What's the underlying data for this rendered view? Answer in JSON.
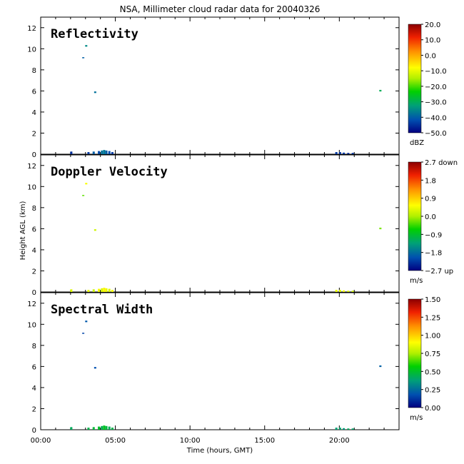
{
  "figure": {
    "title": "NSA, Millimeter cloud radar data for 20040326",
    "xlabel": "Time (hours, GMT)",
    "ylabel": "Height AGL (km)"
  },
  "chart_data": [
    {
      "type": "heatmap",
      "title": "Reflectivity",
      "xlabel": "Time (hours, GMT)",
      "ylabel": "Height AGL (km)",
      "xlim": [
        0,
        24
      ],
      "ylim": [
        0,
        13
      ],
      "xticks": [
        0,
        5,
        10,
        15,
        20
      ],
      "xtick_labels": [
        "00:00",
        "05:00",
        "10:00",
        "15:00",
        "20:00"
      ],
      "yticks": [
        0,
        2,
        4,
        6,
        8,
        10,
        12
      ],
      "colorbar": {
        "unit": "dBZ",
        "range": [
          -50,
          20
        ],
        "tick_values": [
          20,
          10,
          0,
          -10,
          -20,
          -30,
          -40,
          -50
        ],
        "tick_labels": [
          "20.0",
          "10.0",
          "0.0",
          "−10.0",
          "−20.0",
          "−30.0",
          "−40.0",
          "−50.0"
        ]
      },
      "echoes": [
        {
          "t": 2.05,
          "h0": 0.0,
          "h1": 0.25,
          "value": -45
        },
        {
          "t": 3.2,
          "h0": 0.0,
          "h1": 0.2,
          "value": -44
        },
        {
          "t": 3.55,
          "h0": 0.0,
          "h1": 0.25,
          "value": -40
        },
        {
          "t": 3.9,
          "h0": 0.0,
          "h1": 0.3,
          "value": -42
        },
        {
          "t": 4.1,
          "h0": 0.0,
          "h1": 0.35,
          "value": -38
        },
        {
          "t": 4.25,
          "h0": 0.0,
          "h1": 0.4,
          "value": -37
        },
        {
          "t": 4.4,
          "h0": 0.0,
          "h1": 0.35,
          "value": -40
        },
        {
          "t": 4.6,
          "h0": 0.0,
          "h1": 0.3,
          "value": -42
        },
        {
          "t": 4.8,
          "h0": 0.0,
          "h1": 0.2,
          "value": -44
        },
        {
          "t": 2.85,
          "h0": 9.1,
          "h1": 9.2,
          "value": -40
        },
        {
          "t": 3.05,
          "h0": 10.2,
          "h1": 10.35,
          "value": -35
        },
        {
          "t": 3.65,
          "h0": 5.8,
          "h1": 5.95,
          "value": -38
        },
        {
          "t": 19.8,
          "h0": 0.0,
          "h1": 0.2,
          "value": -44
        },
        {
          "t": 20.05,
          "h0": 0.0,
          "h1": 0.2,
          "value": -45
        },
        {
          "t": 20.3,
          "h0": 0.0,
          "h1": 0.15,
          "value": -44
        },
        {
          "t": 20.6,
          "h0": 0.0,
          "h1": 0.12,
          "value": -46
        },
        {
          "t": 20.9,
          "h0": 0.0,
          "h1": 0.12,
          "value": -45
        },
        {
          "t": 22.75,
          "h0": 5.95,
          "h1": 6.1,
          "value": -30
        }
      ]
    },
    {
      "type": "heatmap",
      "title": "Doppler Velocity",
      "xlabel": "Time (hours, GMT)",
      "ylabel": "Height AGL (km)",
      "xlim": [
        0,
        24
      ],
      "ylim": [
        0,
        13
      ],
      "xticks": [
        0,
        5,
        10,
        15,
        20
      ],
      "xtick_labels": [
        "00:00",
        "05:00",
        "10:00",
        "15:00",
        "20:00"
      ],
      "yticks": [
        0,
        2,
        4,
        6,
        8,
        10,
        12
      ],
      "colorbar": {
        "unit": "m/s",
        "range": [
          -2.7,
          2.7
        ],
        "tick_values": [
          2.7,
          1.8,
          0.9,
          0.0,
          -0.9,
          -1.8,
          -2.7
        ],
        "tick_labels": [
          "2.7 down",
          "1.8",
          "0.9",
          "0.0",
          "−0.9",
          "−1.8",
          "−2.7 up"
        ]
      },
      "echoes": [
        {
          "t": 2.05,
          "h0": 0.0,
          "h1": 0.25,
          "value": 0.3
        },
        {
          "t": 3.2,
          "h0": 0.0,
          "h1": 0.2,
          "value": 0.4
        },
        {
          "t": 3.55,
          "h0": 0.0,
          "h1": 0.25,
          "value": 0.2
        },
        {
          "t": 3.9,
          "h0": 0.0,
          "h1": 0.3,
          "value": 0.5
        },
        {
          "t": 4.1,
          "h0": 0.0,
          "h1": 0.35,
          "value": 0.3
        },
        {
          "t": 4.25,
          "h0": 0.0,
          "h1": 0.4,
          "value": 0.6
        },
        {
          "t": 4.4,
          "h0": 0.0,
          "h1": 0.35,
          "value": 0.4
        },
        {
          "t": 4.6,
          "h0": 0.0,
          "h1": 0.3,
          "value": 0.3
        },
        {
          "t": 4.8,
          "h0": 0.0,
          "h1": 0.2,
          "value": 0.5
        },
        {
          "t": 2.85,
          "h0": 9.1,
          "h1": 9.2,
          "value": -0.3
        },
        {
          "t": 3.05,
          "h0": 10.2,
          "h1": 10.35,
          "value": 0.5
        },
        {
          "t": 3.65,
          "h0": 5.8,
          "h1": 5.95,
          "value": 0.2
        },
        {
          "t": 19.8,
          "h0": 0.0,
          "h1": 0.2,
          "value": 0.4
        },
        {
          "t": 20.05,
          "h0": 0.0,
          "h1": 0.2,
          "value": 0.3
        },
        {
          "t": 20.3,
          "h0": 0.0,
          "h1": 0.15,
          "value": 0.5
        },
        {
          "t": 20.6,
          "h0": 0.0,
          "h1": 0.12,
          "value": 0.3
        },
        {
          "t": 20.9,
          "h0": 0.0,
          "h1": 0.12,
          "value": 0.2
        },
        {
          "t": 22.75,
          "h0": 5.95,
          "h1": 6.1,
          "value": -0.2
        }
      ]
    },
    {
      "type": "heatmap",
      "title": "Spectral Width",
      "xlabel": "Time (hours, GMT)",
      "ylabel": "Height AGL (km)",
      "xlim": [
        0,
        24
      ],
      "ylim": [
        0,
        13
      ],
      "xticks": [
        0,
        5,
        10,
        15,
        20
      ],
      "xtick_labels": [
        "00:00",
        "05:00",
        "10:00",
        "15:00",
        "20:00"
      ],
      "yticks": [
        0,
        2,
        4,
        6,
        8,
        10,
        12
      ],
      "colorbar": {
        "unit": "m/s",
        "range": [
          0,
          1.5
        ],
        "tick_values": [
          1.5,
          1.25,
          1.0,
          0.75,
          0.5,
          0.25,
          0.0
        ],
        "tick_labels": [
          "1.50",
          "1.25",
          "1.00",
          "0.75",
          "0.50",
          "0.25",
          "0.00"
        ]
      },
      "echoes": [
        {
          "t": 2.05,
          "h0": 0.0,
          "h1": 0.25,
          "value": 0.42
        },
        {
          "t": 3.2,
          "h0": 0.0,
          "h1": 0.2,
          "value": 0.45
        },
        {
          "t": 3.55,
          "h0": 0.0,
          "h1": 0.25,
          "value": 0.48
        },
        {
          "t": 3.9,
          "h0": 0.0,
          "h1": 0.3,
          "value": 0.5
        },
        {
          "t": 4.1,
          "h0": 0.0,
          "h1": 0.35,
          "value": 0.44
        },
        {
          "t": 4.25,
          "h0": 0.0,
          "h1": 0.4,
          "value": 0.52
        },
        {
          "t": 4.4,
          "h0": 0.0,
          "h1": 0.35,
          "value": 0.47
        },
        {
          "t": 4.6,
          "h0": 0.0,
          "h1": 0.3,
          "value": 0.43
        },
        {
          "t": 4.8,
          "h0": 0.0,
          "h1": 0.2,
          "value": 0.45
        },
        {
          "t": 2.85,
          "h0": 9.1,
          "h1": 9.2,
          "value": 0.15
        },
        {
          "t": 3.05,
          "h0": 10.2,
          "h1": 10.35,
          "value": 0.2
        },
        {
          "t": 3.65,
          "h0": 5.8,
          "h1": 5.95,
          "value": 0.18
        },
        {
          "t": 19.8,
          "h0": 0.0,
          "h1": 0.2,
          "value": 0.38
        },
        {
          "t": 20.05,
          "h0": 0.0,
          "h1": 0.2,
          "value": 0.4
        },
        {
          "t": 20.3,
          "h0": 0.0,
          "h1": 0.15,
          "value": 0.36
        },
        {
          "t": 20.6,
          "h0": 0.0,
          "h1": 0.12,
          "value": 0.42
        },
        {
          "t": 20.9,
          "h0": 0.0,
          "h1": 0.12,
          "value": 0.4
        },
        {
          "t": 22.75,
          "h0": 5.95,
          "h1": 6.1,
          "value": 0.22
        }
      ]
    }
  ]
}
